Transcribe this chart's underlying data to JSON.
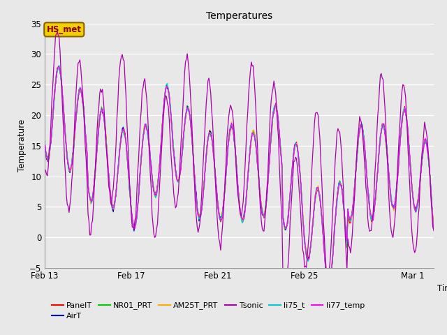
{
  "title": "Temperatures",
  "xlabel": "Time",
  "ylabel": "Temperature",
  "ylim": [
    -5,
    35
  ],
  "yticks": [
    -5,
    0,
    5,
    10,
    15,
    20,
    25,
    30,
    35
  ],
  "xtick_labels": [
    "Feb 13",
    "Feb 17",
    "Feb 21",
    "Feb 25",
    "Mar 1"
  ],
  "xtick_days": [
    0,
    4,
    8,
    12,
    17
  ],
  "bg_color": "#e8e8e8",
  "fig_color": "#e8e8e8",
  "annotation_text": "HS_met",
  "annotation_color": "#8B0000",
  "annotation_bg": "#f0d000",
  "annotation_edge": "#8B6000",
  "series_colors": {
    "PanelT": "#ff0000",
    "AirT": "#0000cc",
    "NR01_PRT": "#00cc00",
    "AM25T_PRT": "#ffaa00",
    "Tsonic": "#aa00aa",
    "li75_t": "#00cccc",
    "li77_temp": "#ff00ff"
  },
  "legend_order": [
    "PanelT",
    "AirT",
    "NR01_PRT",
    "AM25T_PRT",
    "Tsonic",
    "li75_t",
    "li77_temp"
  ]
}
